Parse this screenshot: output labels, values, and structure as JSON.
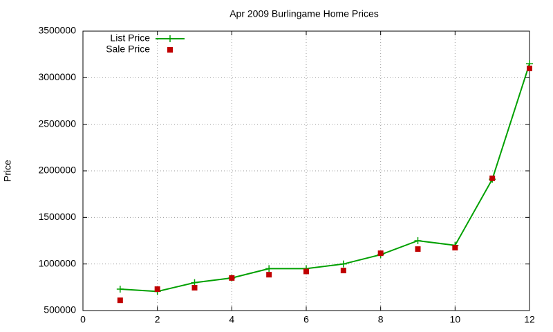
{
  "chart_data": {
    "type": "line",
    "title": "Apr 2009 Burlingame Home Prices",
    "y_label": "Price",
    "x": [
      1,
      2,
      3,
      4,
      5,
      6,
      7,
      8,
      9,
      10,
      11,
      12
    ],
    "series": [
      {
        "name": "List Price",
        "color": "#00a000",
        "style": "line-plus",
        "values": [
          730000,
          705000,
          800000,
          850000,
          950000,
          950000,
          1000000,
          1100000,
          1250000,
          1200000,
          1910000,
          3150000
        ]
      },
      {
        "name": "Sale Price",
        "color": "#c00000",
        "style": "square",
        "values": [
          610000,
          730000,
          745000,
          850000,
          885000,
          920000,
          930000,
          1115000,
          1160000,
          1175000,
          1920000,
          3100000
        ]
      }
    ],
    "xlim": [
      0,
      12
    ],
    "xticks": [
      0,
      2,
      4,
      6,
      8,
      10,
      12
    ],
    "ylim": [
      500000,
      3500000
    ],
    "yticks": [
      500000,
      1000000,
      1500000,
      2000000,
      2500000,
      3000000,
      3500000
    ],
    "grid": true,
    "legend": "top-left"
  }
}
